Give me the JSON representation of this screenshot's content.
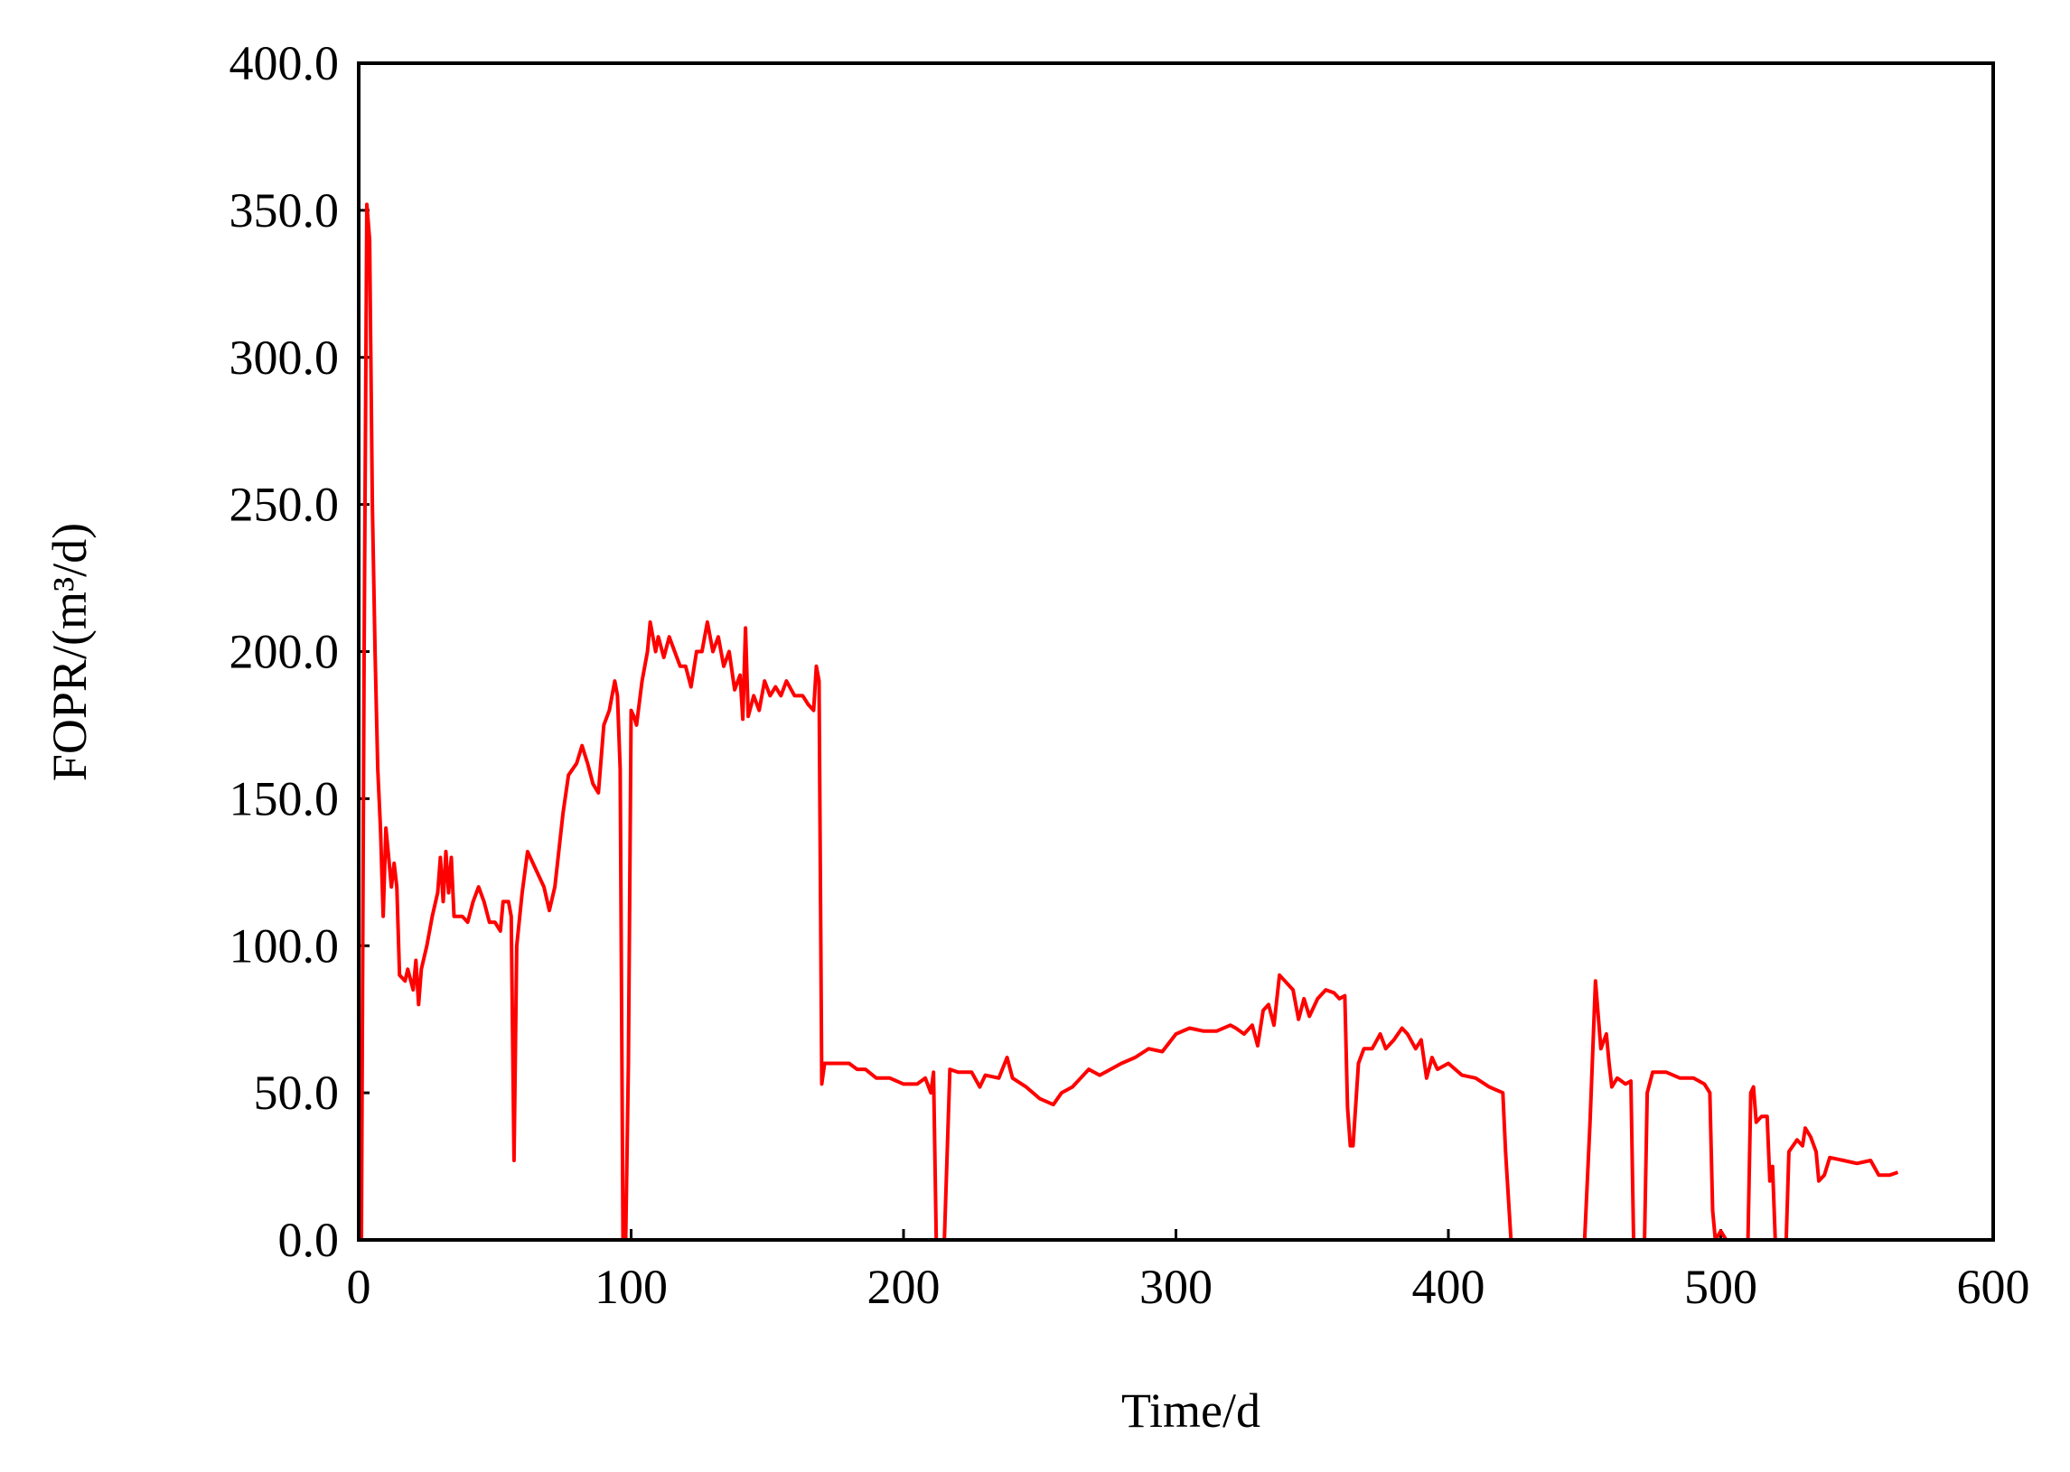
{
  "chart_data": {
    "type": "line",
    "x_label": "Time/d",
    "y_label": "FOPR/(m³/d)",
    "xlim": [
      0,
      600
    ],
    "xticks": [
      0,
      100,
      200,
      300,
      400,
      500,
      600
    ],
    "ylim": [
      0,
      400
    ],
    "yticks": [
      {
        "value": 0,
        "label": "0.0"
      },
      {
        "value": 50,
        "label": "50.0"
      },
      {
        "value": 100,
        "label": "100.0"
      },
      {
        "value": 150,
        "label": "150.0"
      },
      {
        "value": 200,
        "label": "200.0"
      },
      {
        "value": 250,
        "label": "250.0"
      },
      {
        "value": 300,
        "label": "300.0"
      },
      {
        "value": 350,
        "label": "350.0"
      },
      {
        "value": 400,
        "label": "400.0"
      }
    ],
    "color": "#ff0000",
    "x": [
      0,
      1,
      2,
      3,
      4,
      5,
      6,
      7,
      8,
      9,
      10,
      11,
      12,
      13,
      14,
      15,
      17,
      18,
      20,
      21,
      22,
      23,
      25,
      27,
      29,
      30,
      31,
      32,
      33,
      34,
      35,
      38,
      40,
      42,
      44,
      46,
      48,
      50,
      52,
      53,
      55,
      56,
      57,
      58,
      60,
      62,
      65,
      68,
      70,
      72,
      75,
      77,
      80,
      82,
      84,
      86,
      88,
      90,
      92,
      94,
      95,
      96,
      97,
      98,
      99,
      100,
      101,
      102,
      104,
      106,
      107,
      109,
      110,
      112,
      114,
      116,
      118,
      120,
      122,
      124,
      126,
      128,
      130,
      132,
      134,
      136,
      138,
      140,
      141,
      142,
      143,
      145,
      147,
      149,
      151,
      153,
      155,
      157,
      160,
      163,
      165,
      167,
      168,
      169,
      170,
      171,
      175,
      180,
      183,
      186,
      190,
      195,
      200,
      205,
      208,
      210,
      211,
      212,
      215,
      217,
      220,
      225,
      228,
      230,
      235,
      238,
      240,
      245,
      250,
      255,
      258,
      262,
      265,
      268,
      272,
      276,
      280,
      285,
      290,
      295,
      300,
      305,
      310,
      315,
      320,
      322,
      325,
      328,
      330,
      332,
      334,
      336,
      338,
      340,
      343,
      345,
      347,
      349,
      352,
      355,
      358,
      360,
      362,
      363,
      364,
      365,
      367,
      369,
      372,
      375,
      377,
      380,
      383,
      385,
      388,
      390,
      392,
      394,
      396,
      400,
      405,
      410,
      415,
      420,
      421,
      423,
      450,
      452,
      454,
      456,
      458,
      459,
      460,
      462,
      465,
      467,
      468,
      472,
      473,
      475,
      480,
      485,
      490,
      494,
      496,
      497,
      498,
      500,
      502,
      510,
      511,
      512,
      513,
      515,
      517,
      518,
      519,
      520,
      524,
      525,
      528,
      530,
      531,
      533,
      535,
      536,
      538,
      540,
      545,
      550,
      555,
      558,
      562,
      565
    ],
    "values": [
      0,
      0,
      200,
      352,
      340,
      250,
      200,
      160,
      140,
      110,
      140,
      130,
      120,
      128,
      120,
      90,
      88,
      92,
      85,
      95,
      80,
      92,
      100,
      110,
      118,
      130,
      115,
      132,
      118,
      130,
      110,
      110,
      108,
      115,
      120,
      115,
      108,
      108,
      105,
      115,
      115,
      110,
      27,
      100,
      118,
      132,
      126,
      120,
      112,
      120,
      145,
      158,
      162,
      168,
      162,
      155,
      152,
      175,
      180,
      190,
      185,
      160,
      0,
      0,
      60,
      180,
      178,
      175,
      190,
      200,
      210,
      200,
      205,
      198,
      205,
      200,
      195,
      195,
      188,
      200,
      200,
      210,
      200,
      205,
      195,
      200,
      187,
      192,
      177,
      208,
      178,
      185,
      180,
      190,
      185,
      188,
      185,
      190,
      185,
      185,
      182,
      180,
      195,
      190,
      53,
      60,
      60,
      60,
      58,
      58,
      55,
      55,
      53,
      53,
      55,
      50,
      57,
      0,
      0,
      58,
      57,
      57,
      52,
      56,
      55,
      62,
      55,
      52,
      48,
      46,
      50,
      52,
      55,
      58,
      56,
      58,
      60,
      62,
      65,
      64,
      70,
      72,
      71,
      71,
      73,
      72,
      70,
      73,
      66,
      78,
      80,
      73,
      90,
      88,
      85,
      75,
      82,
      76,
      82,
      85,
      84,
      82,
      83,
      45,
      32,
      32,
      60,
      65,
      65,
      70,
      65,
      68,
      72,
      70,
      65,
      68,
      55,
      62,
      58,
      60,
      56,
      55,
      52,
      50,
      30,
      0,
      0,
      40,
      88,
      65,
      70,
      60,
      52,
      55,
      53,
      54,
      0,
      0,
      50,
      57,
      57,
      55,
      55,
      53,
      50,
      10,
      0,
      3,
      0,
      0,
      50,
      52,
      40,
      42,
      42,
      20,
      25,
      0,
      0,
      30,
      34,
      32,
      38,
      35,
      30,
      20,
      22,
      28,
      27,
      26,
      27,
      22,
      22,
      23
    ]
  }
}
